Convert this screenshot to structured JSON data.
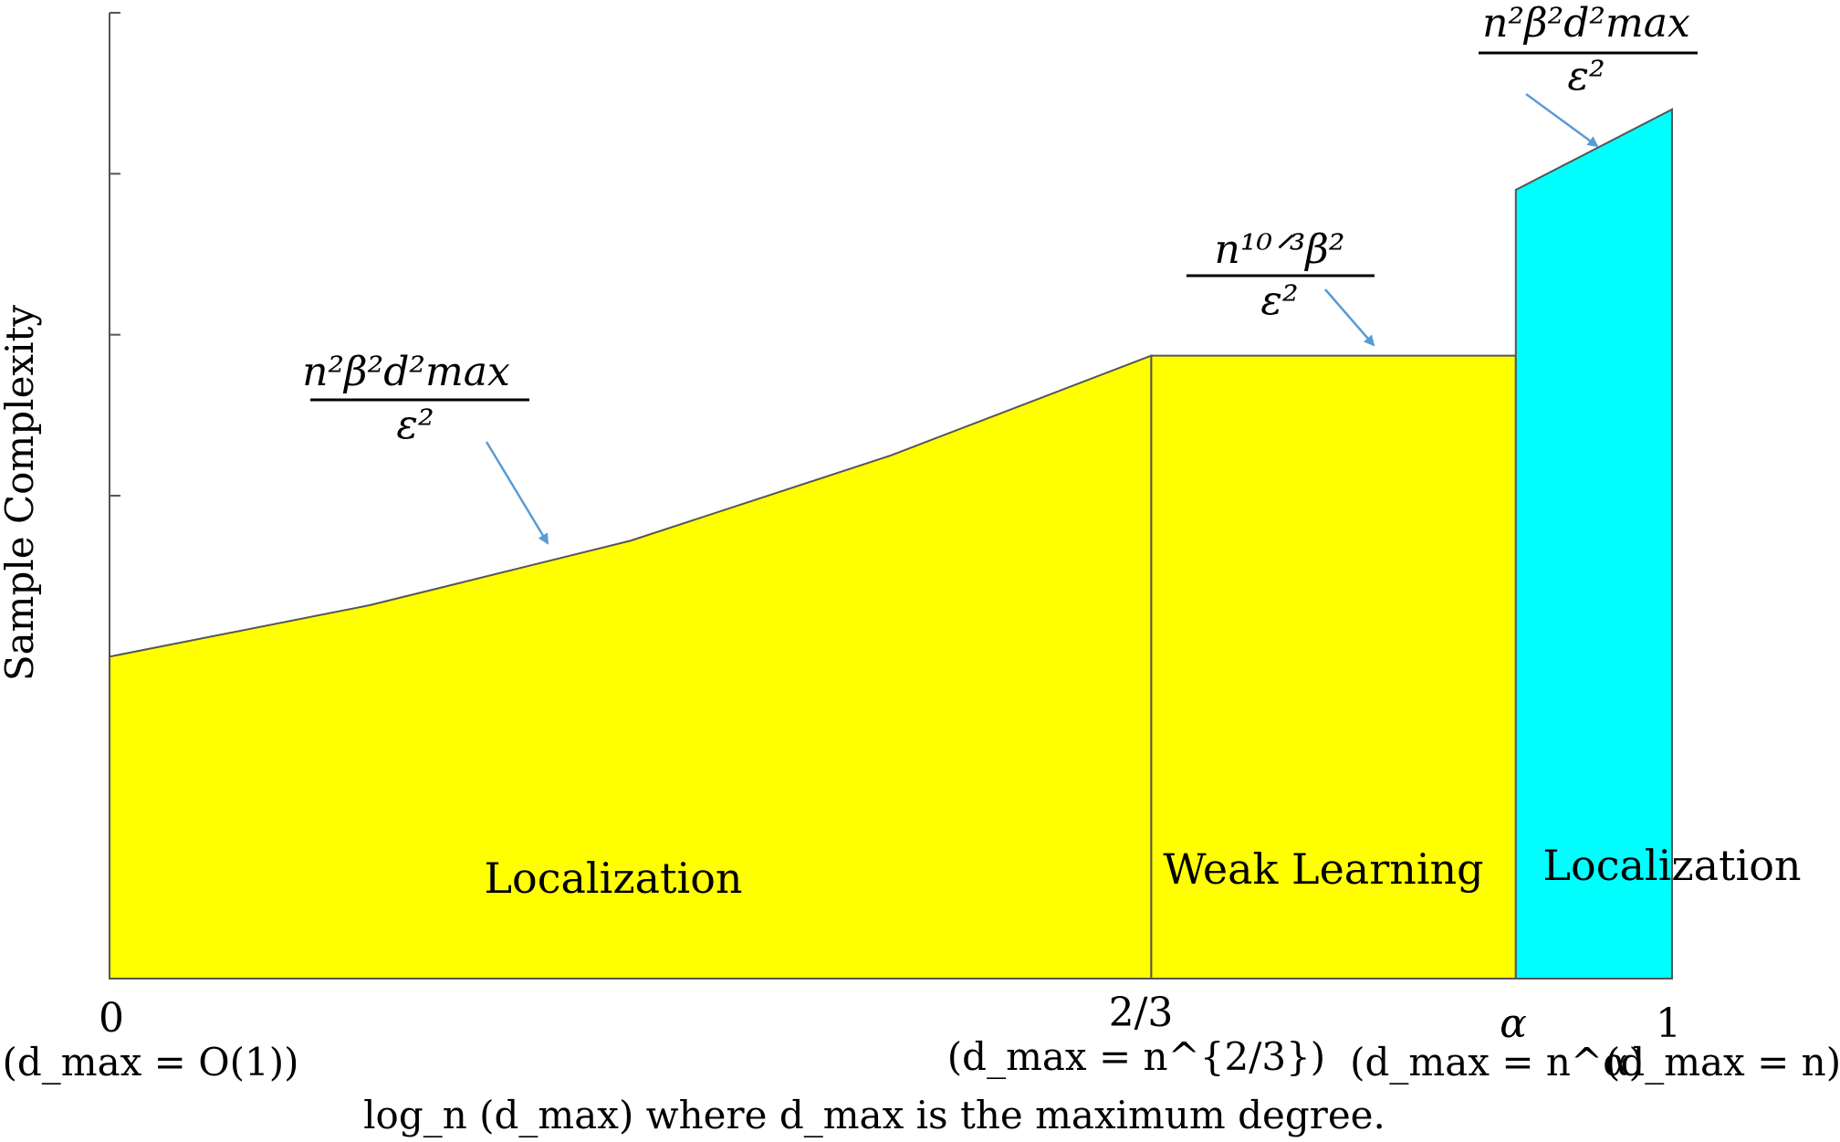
{
  "chart_data": {
    "type": "area",
    "ylabel": "Sample Complexity",
    "xlabel": "log_n (d_max) where d_max is the maximum degree.",
    "x_ticks": [
      {
        "value": 0,
        "label": "0",
        "sub": "(d_max = O(1))"
      },
      {
        "value": 0.6667,
        "label": "2/3",
        "sub": "(d_max = n^{2/3})"
      },
      {
        "value": 0.9,
        "label": "α",
        "sub": "(d_max = n^α)"
      },
      {
        "value": 1,
        "label": "1",
        "sub": "(d_max = n)"
      }
    ],
    "xlim": [
      0,
      1
    ],
    "ylim": [
      0,
      6
    ],
    "y_ticks": [
      1,
      2,
      3,
      4,
      5,
      6
    ],
    "y_tick_labels_shown": false,
    "regions": [
      {
        "name": "Localization",
        "color": "#ffff00",
        "formula": {
          "numerator": "n²β²d²max",
          "denominator": "ε²"
        },
        "x": [
          0,
          0.1667,
          0.3333,
          0.5,
          0.6667
        ],
        "y": [
          2.0,
          2.32,
          2.72,
          3.25,
          3.87
        ]
      },
      {
        "name": "Weak Learning",
        "color": "#ffff00",
        "formula": {
          "numerator": "n¹⁰ᐟ³β²",
          "denominator": "ε²"
        },
        "x": [
          0.6667,
          0.9
        ],
        "y": [
          3.87,
          3.87
        ]
      },
      {
        "name": "Localization",
        "color": "#00ffff",
        "formula": {
          "numerator": "n²β²d²max",
          "denominator": "ε²"
        },
        "x": [
          0.9,
          1.0
        ],
        "y": [
          4.9,
          5.4
        ]
      }
    ]
  }
}
